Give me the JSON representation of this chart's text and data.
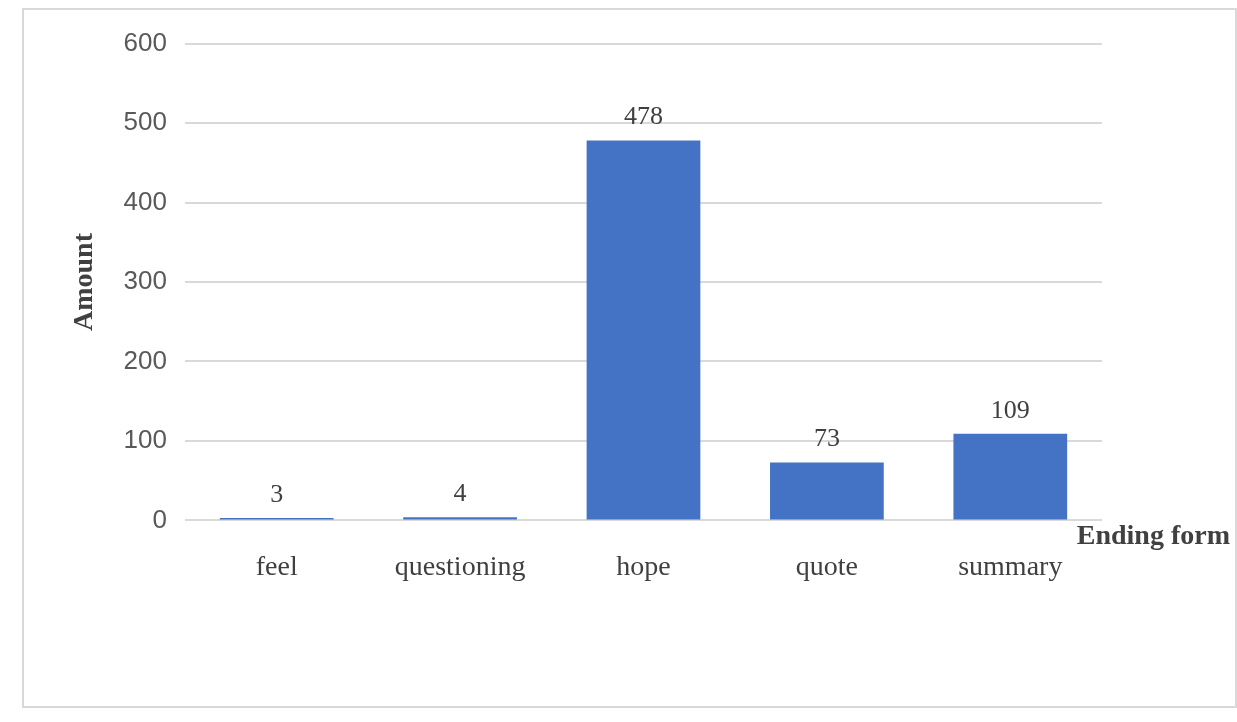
{
  "chart_data": {
    "type": "bar",
    "xlabel": "Ending form",
    "ylabel": "Amount",
    "categories": [
      "feel",
      "questioning",
      "hope",
      "quote",
      "summary"
    ],
    "values": [
      3,
      4,
      478,
      73,
      109
    ],
    "color": "#4472c4",
    "ylim": [
      0,
      600
    ],
    "yticks": [
      0,
      100,
      200,
      300,
      400,
      500,
      600
    ],
    "grid": "y",
    "data_labels": true
  }
}
